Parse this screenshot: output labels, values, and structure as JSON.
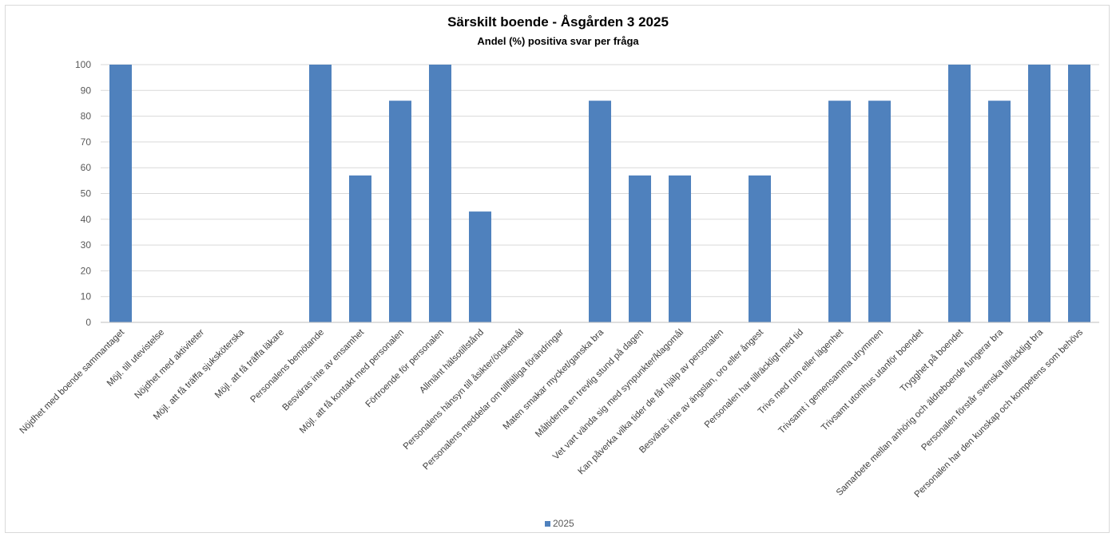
{
  "chart_data": {
    "type": "bar",
    "title": "Särskilt boende - Åsgården 3 2025",
    "subtitle": "Andel (%) positiva svar per fråga",
    "ylim": [
      0,
      100
    ],
    "yticks": [
      0,
      10,
      20,
      30,
      40,
      50,
      60,
      70,
      80,
      90,
      100
    ],
    "grid": true,
    "legend_position": "bottom",
    "color": "#4f81bd",
    "categories": [
      "Nöjdhet med boende sammantaget",
      "Möjl. till utevistelse",
      "Nöjdhet med aktiviteter",
      "Möjl. att få träffa sjuksköterska",
      "Möjl. att få träffa läkare",
      "Personalens bemötande",
      "Besväras inte av ensamhet",
      "Möjl. att få kontakt med personalen",
      "Förtroende för personalen",
      "Allmänt hälsotillstånd",
      "Personalens hänsyn till åsikter/önskemål",
      "Personalens meddelar om tillfälliga förändringar",
      "Maten smakar mycket/ganska bra",
      "Måltiderna en trevlig stund på dagen",
      "Vet vart vända sig med synpunkter/klagomål",
      "Kan påverka vilka tider de får hjälp av personalen",
      "Besväras inte av ängslan, oro eller ångest",
      "Personalen har tillräckligt med tid",
      "Trivs med rum eller lägenhet",
      "Trivsamt i gemensamma utrymmen",
      "Trivsamt utomhus utanför boendet",
      "Trygghet på boendet",
      "Samarbete mellan anhörig och äldreboende fungerar bra",
      "Personalen förstår svenska tillräckligt bra",
      "Personalen har den kunskap och kompetens som behövs"
    ],
    "series": [
      {
        "name": "2025",
        "values": [
          100,
          0,
          0,
          0,
          0,
          100,
          57,
          86,
          100,
          43,
          0,
          0,
          86,
          57,
          57,
          0,
          57,
          0,
          86,
          86,
          0,
          100,
          86,
          100,
          100
        ]
      }
    ]
  }
}
